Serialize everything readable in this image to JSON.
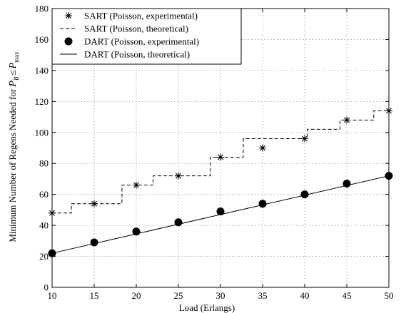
{
  "chart_data": {
    "type": "line",
    "xlabel": "Load (Erlangs)",
    "ylabel": {
      "main": "Minimum Number of Regens Needed for ",
      "p_letter": "P",
      "p_sub": "B",
      "le": "≤",
      "p_max_letter": "P",
      "p_max_sub": "max"
    },
    "xlim": [
      10,
      50
    ],
    "ylim": [
      0,
      180
    ],
    "xticks": [
      10,
      15,
      20,
      25,
      30,
      35,
      40,
      45,
      50
    ],
    "yticks": [
      0,
      20,
      40,
      60,
      80,
      100,
      120,
      140,
      160,
      180
    ],
    "grid": true,
    "legend_position": "top-left",
    "series": [
      {
        "name": "SART (Poisson, experimental)",
        "style": "asterisk-marker",
        "x": [
          10,
          15,
          20,
          25,
          30,
          35,
          40,
          45,
          50
        ],
        "y": [
          48,
          54,
          66,
          72,
          84,
          90,
          96,
          108,
          114
        ]
      },
      {
        "name": "SART (Poisson, theoretical)",
        "style": "dashed-step",
        "x": [
          10,
          12.3,
          12.3,
          18.3,
          18.3,
          22.0,
          22.0,
          28.8,
          28.8,
          32.7,
          32.7,
          40.3,
          40.3,
          44.2,
          44.2,
          48.2,
          48.2,
          50
        ],
        "y": [
          48,
          48,
          54,
          54,
          66,
          66,
          72,
          72,
          84,
          84,
          96,
          96,
          102,
          102,
          108,
          108,
          114,
          114
        ]
      },
      {
        "name": "DART (Poisson, experimental)",
        "style": "filled-circle-marker",
        "x": [
          10,
          15,
          20,
          25,
          30,
          35,
          40,
          45,
          50
        ],
        "y": [
          22,
          29,
          36,
          42,
          49,
          54,
          60,
          67,
          72
        ]
      },
      {
        "name": "DART (Poisson, theoretical)",
        "style": "solid-line",
        "x": [
          10,
          50
        ],
        "y": [
          22,
          72
        ]
      }
    ]
  }
}
